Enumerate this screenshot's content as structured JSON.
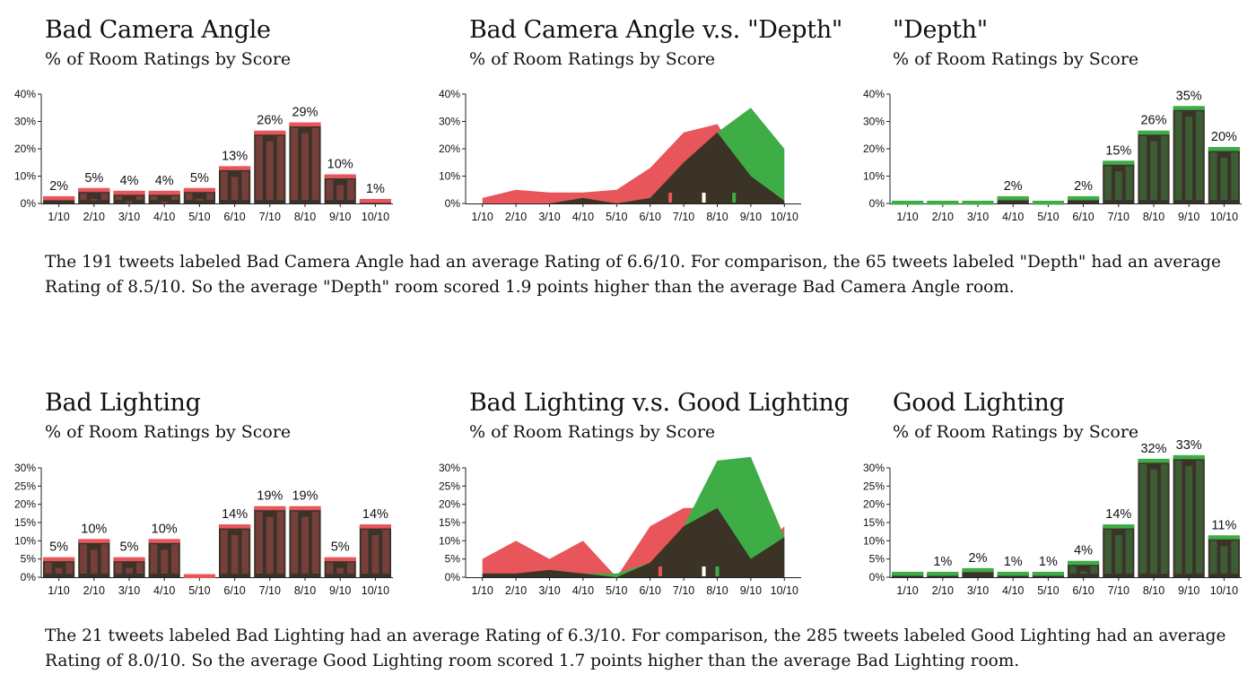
{
  "colors": {
    "bad": "#e8555a",
    "good": "#3fad46",
    "overlap": "#3a3326",
    "marker_avg": "#ffffff"
  },
  "sections": [
    {
      "summary": "The 191 tweets labeled Bad Camera Angle had an average Rating of 6.6/10. For comparison, the 65 tweets labeled \"Depth\" had an average Rating of 8.5/10. So the average \"Depth\" room scored 1.9 points higher than the average Bad Camera Angle room.",
      "left": {
        "title": "Bad Camera Angle",
        "subtitle": "% of Room Ratings by Score"
      },
      "middle": {
        "title": "Bad Camera Angle v.s. \"Depth\"",
        "subtitle": "% of Room Ratings by Score"
      },
      "right": {
        "title": "\"Depth\"",
        "subtitle": "% of Room Ratings by Score"
      }
    },
    {
      "summary": "The 21 tweets labeled Bad Lighting had an average Rating of 6.3/10. For comparison, the 285 tweets labeled Good Lighting had an average Rating of 8.0/10. So the average Good Lighting room scored 1.7 points higher than the average Bad Lighting room.",
      "left": {
        "title": "Bad Lighting",
        "subtitle": "% of Room Ratings by Score"
      },
      "middle": {
        "title": "Bad Lighting v.s. Good Lighting",
        "subtitle": "% of Room Ratings by Score"
      },
      "right": {
        "title": "Good Lighting",
        "subtitle": "% of Room Ratings by Score"
      }
    }
  ],
  "chart_data": [
    {
      "type": "bar",
      "title": "Bad Camera Angle",
      "subtitle": "% of Room Ratings by Score",
      "categories": [
        "1/10",
        "2/10",
        "3/10",
        "4/10",
        "5/10",
        "6/10",
        "7/10",
        "8/10",
        "9/10",
        "10/10"
      ],
      "values": [
        2,
        5,
        4,
        4,
        5,
        13,
        26,
        29,
        10,
        1
      ],
      "data_labels": [
        "2%",
        "5%",
        "4%",
        "4%",
        "5%",
        "13%",
        "26%",
        "29%",
        "10%",
        "1%"
      ],
      "yticks": [
        "0%",
        "10%",
        "20%",
        "30%",
        "40%"
      ],
      "ylim": [
        0,
        40
      ],
      "color": "#e8555a"
    },
    {
      "type": "area",
      "title": "Bad Camera Angle v.s. \"Depth\"",
      "subtitle": "% of Room Ratings by Score",
      "categories": [
        "1/10",
        "2/10",
        "3/10",
        "4/10",
        "5/10",
        "6/10",
        "7/10",
        "8/10",
        "9/10",
        "10/10"
      ],
      "series": [
        {
          "values": [
            2,
            5,
            4,
            4,
            5,
            13,
            26,
            29,
            10,
            1
          ],
          "color": "#e8555a"
        },
        {
          "values": [
            0,
            0,
            0,
            2,
            0,
            2,
            15,
            26,
            35,
            20
          ],
          "color": "#3fad46"
        }
      ],
      "averages": [
        6.6,
        7.6,
        8.5
      ],
      "yticks": [
        "0%",
        "10%",
        "20%",
        "30%",
        "40%"
      ],
      "ylim": [
        0,
        40
      ]
    },
    {
      "type": "bar",
      "title": "\"Depth\"",
      "subtitle": "% of Room Ratings by Score",
      "categories": [
        "1/10",
        "2/10",
        "3/10",
        "4/10",
        "5/10",
        "6/10",
        "7/10",
        "8/10",
        "9/10",
        "10/10"
      ],
      "values": [
        0,
        0,
        0,
        2,
        0,
        2,
        15,
        26,
        35,
        20
      ],
      "data_labels": [
        "",
        "",
        "",
        "2%",
        "",
        "2%",
        "15%",
        "26%",
        "35%",
        "20%"
      ],
      "yticks": [
        "0%",
        "10%",
        "20%",
        "30%",
        "40%"
      ],
      "ylim": [
        0,
        40
      ],
      "color": "#3fad46"
    },
    {
      "type": "bar",
      "title": "Bad Lighting",
      "subtitle": "% of Room Ratings by Score",
      "categories": [
        "1/10",
        "2/10",
        "3/10",
        "4/10",
        "5/10",
        "6/10",
        "7/10",
        "8/10",
        "9/10",
        "10/10"
      ],
      "values": [
        5,
        10,
        5,
        10,
        0,
        14,
        19,
        19,
        5,
        14
      ],
      "data_labels": [
        "5%",
        "10%",
        "5%",
        "10%",
        "",
        "14%",
        "19%",
        "19%",
        "5%",
        "14%"
      ],
      "yticks": [
        "0%",
        "5%",
        "10%",
        "15%",
        "20%",
        "25%",
        "30%"
      ],
      "ylim": [
        0,
        30
      ],
      "color": "#e8555a"
    },
    {
      "type": "area",
      "title": "Bad Lighting v.s. Good Lighting",
      "subtitle": "% of Room Ratings by Score",
      "categories": [
        "1/10",
        "2/10",
        "3/10",
        "4/10",
        "5/10",
        "6/10",
        "7/10",
        "8/10",
        "9/10",
        "10/10"
      ],
      "series": [
        {
          "values": [
            5,
            10,
            5,
            10,
            0,
            14,
            19,
            19,
            5,
            14
          ],
          "color": "#e8555a"
        },
        {
          "values": [
            1,
            1,
            2,
            1,
            1,
            4,
            14,
            32,
            33,
            11
          ],
          "color": "#3fad46"
        }
      ],
      "averages": [
        6.3,
        7.6,
        8.0
      ],
      "yticks": [
        "0%",
        "5%",
        "10%",
        "15%",
        "20%",
        "25%",
        "30%"
      ],
      "ylim": [
        0,
        30
      ]
    },
    {
      "type": "bar",
      "title": "Good Lighting",
      "subtitle": "% of Room Ratings by Score",
      "categories": [
        "1/10",
        "2/10",
        "3/10",
        "4/10",
        "5/10",
        "6/10",
        "7/10",
        "8/10",
        "9/10",
        "10/10"
      ],
      "values": [
        1,
        1,
        2,
        1,
        1,
        4,
        14,
        32,
        33,
        11
      ],
      "data_labels": [
        "",
        "1%",
        "2%",
        "1%",
        "1%",
        "4%",
        "14%",
        "32%",
        "33%",
        "11%"
      ],
      "yticks": [
        "0%",
        "5%",
        "10%",
        "15%",
        "20%",
        "25%",
        "30%"
      ],
      "ylim": [
        0,
        30
      ],
      "color": "#3fad46"
    }
  ]
}
